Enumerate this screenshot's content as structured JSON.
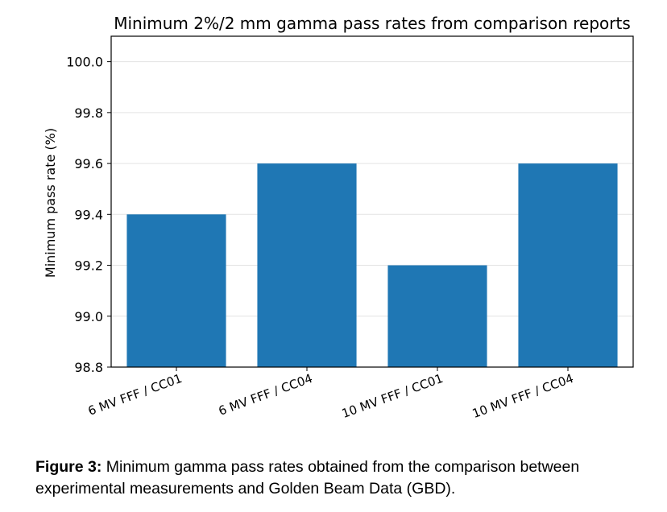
{
  "chart_data": {
    "type": "bar",
    "title": "Minimum 2%/2 mm gamma pass rates from comparison reports",
    "xlabel": "",
    "ylabel": "Minimum pass rate (%)",
    "categories": [
      "6 MV FFF / CC01",
      "6 MV FFF / CC04",
      "10 MV FFF / CC01",
      "10 MV FFF / CC04"
    ],
    "values": [
      99.4,
      99.6,
      99.2,
      99.6
    ],
    "ylim": [
      98.8,
      100.1
    ],
    "yticks": [
      "98.8",
      "99.0",
      "99.2",
      "99.4",
      "99.6",
      "99.8",
      "100.0"
    ],
    "grid": "horizontal",
    "bar_color": "#1f77b4"
  },
  "caption": {
    "label": "Figure 3:",
    "line1": " Minimum gamma pass rates obtained from the comparison between",
    "line2": "experimental measurements and Golden Beam Data (GBD)."
  }
}
